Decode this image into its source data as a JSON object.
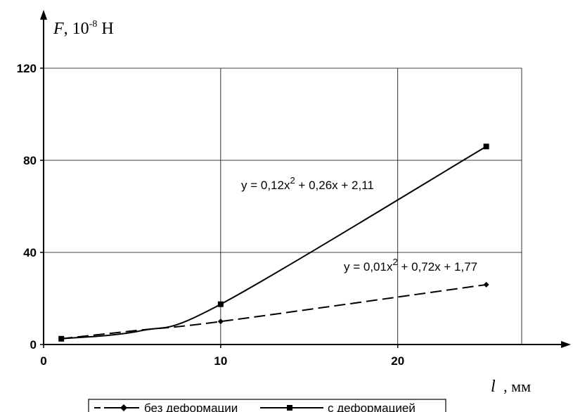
{
  "chart_data": {
    "type": "line",
    "title": "",
    "ylabel": {
      "var": "F",
      "rest": ", 10",
      "exp": "-8",
      "unit": " Н"
    },
    "xlabel": {
      "var": "l",
      "rest": " , мм"
    },
    "xlim": [
      0,
      27
    ],
    "ylim": [
      0,
      120
    ],
    "x_ticks": [
      0,
      10,
      20
    ],
    "y_ticks": [
      0,
      40,
      80,
      120
    ],
    "x_tick_labels": [
      "0",
      "10",
      "20"
    ],
    "y_tick_labels": [
      "0",
      "40",
      "80",
      "120"
    ],
    "grid": true,
    "series": [
      {
        "name": "без деформации",
        "style": "dashed",
        "marker": "diamond",
        "x": [
          1,
          5.5,
          10,
          25
        ],
        "y": [
          2.5,
          6.3,
          10.0,
          26.0
        ],
        "trend": [
          0.01,
          0.72,
          1.77
        ],
        "equation": {
          "a": "y = 0,01x",
          "sup": "2",
          "b": " + 0,72x + 1,77"
        }
      },
      {
        "name": "с деформацией",
        "style": "solid",
        "marker": "square",
        "x": [
          1,
          5.5,
          10,
          25
        ],
        "y": [
          2.5,
          6.0,
          17.5,
          86.0
        ],
        "trend": [
          0.12,
          0.26,
          2.11
        ],
        "equation": {
          "a": "y = 0,12x",
          "sup": "2",
          "b": " + 0,26x + 2,11"
        }
      }
    ],
    "legend_position": "bottom"
  }
}
